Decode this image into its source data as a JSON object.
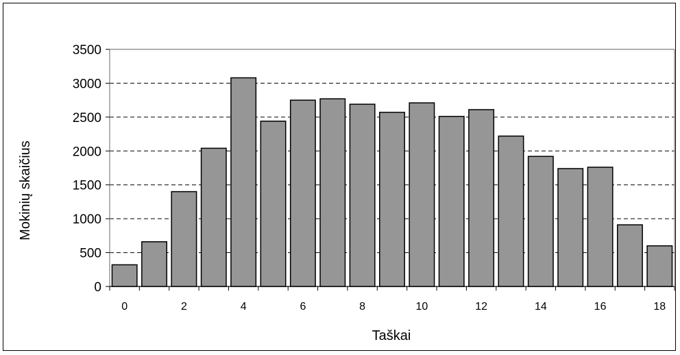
{
  "chart_data": {
    "type": "bar",
    "xlabel": "Taškai",
    "ylabel": "Mokinių skaičius",
    "x": [
      0,
      1,
      2,
      3,
      4,
      5,
      6,
      7,
      8,
      9,
      10,
      11,
      12,
      13,
      14,
      15,
      16,
      17,
      18
    ],
    "values": [
      320,
      660,
      1400,
      2040,
      3080,
      2440,
      2750,
      2770,
      2690,
      2570,
      2710,
      2510,
      2610,
      2220,
      1920,
      1740,
      1760,
      910,
      600
    ],
    "xtick_labels": [
      "0",
      "2",
      "4",
      "6",
      "8",
      "10",
      "12",
      "14",
      "16",
      "18"
    ],
    "ytick_labels": [
      "0",
      "500",
      "1000",
      "1500",
      "2000",
      "2500",
      "3000",
      "3500"
    ],
    "ylim": [
      0,
      3500
    ],
    "grid": "horizontal dashed",
    "bar_color": "#969696",
    "bar_edge_color": "#000000"
  }
}
